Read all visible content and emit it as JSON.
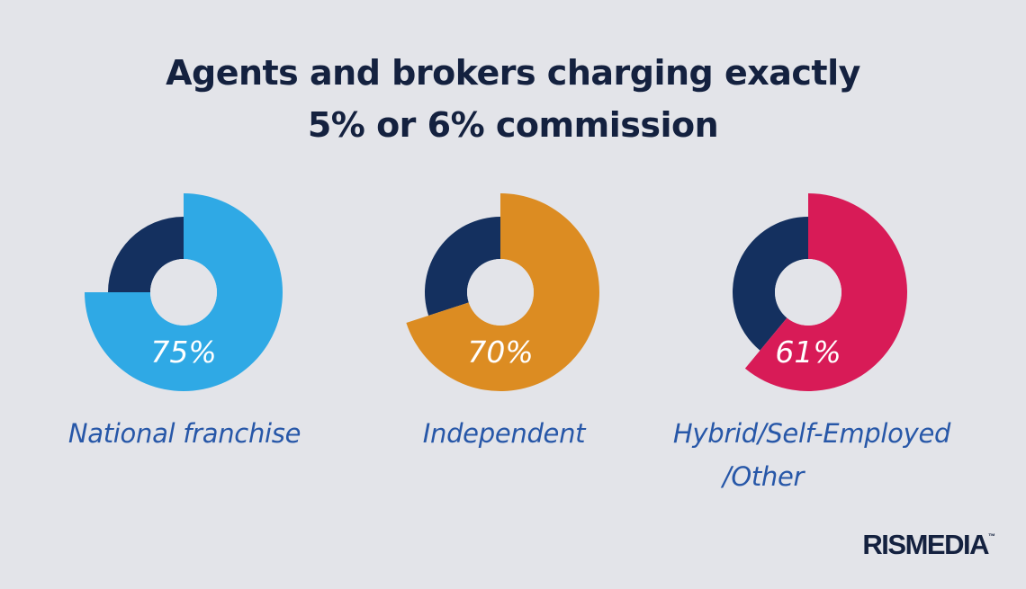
{
  "title": {
    "line1": "Agents and brokers charging exactly",
    "line2": "5% or 6% commission"
  },
  "colors": {
    "background": "#e3e4e9",
    "remainder": "#14305f",
    "title": "#14213f",
    "label": "#2757a8"
  },
  "chart_data": [
    {
      "type": "pie",
      "category": "National franchise",
      "value": 75,
      "value_label": "75%",
      "color": "#2fa9e5",
      "remainder_color": "#14305f"
    },
    {
      "type": "pie",
      "category": "Independent",
      "value": 70,
      "value_label": "70%",
      "color": "#dc8c22",
      "remainder_color": "#14305f"
    },
    {
      "type": "pie",
      "category": "Hybrid/Self-Employed/Other",
      "value": 61,
      "value_label": "61%",
      "color": "#d81b57",
      "remainder_color": "#14305f"
    }
  ],
  "labels": {
    "national": "National franchise",
    "independent": "Independent",
    "hybrid_line1": "Hybrid/Self-Employed",
    "hybrid_line2": "/Other"
  },
  "brand": {
    "name": "RISMEDIA",
    "tm": "™"
  }
}
